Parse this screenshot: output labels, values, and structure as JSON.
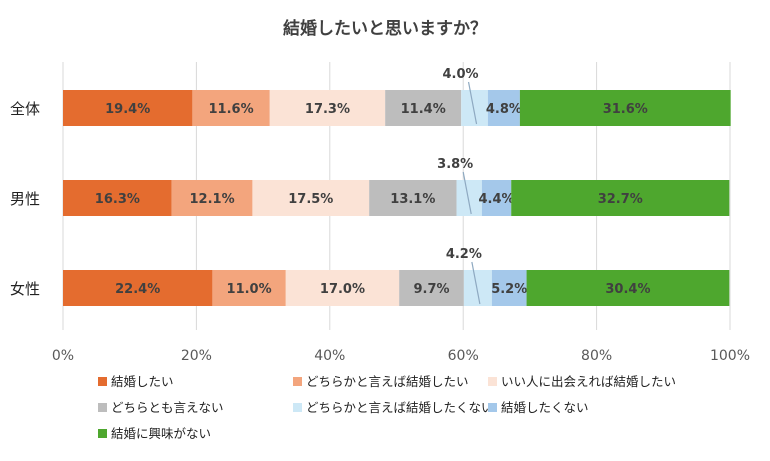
{
  "chart_data": {
    "type": "bar",
    "orientation": "horizontal",
    "stacked": true,
    "percent": true,
    "title": "結婚したいと思いますか？",
    "categories": [
      "全体",
      "男性",
      "女性"
    ],
    "series": [
      {
        "name": "結婚したい",
        "color": "#E46C2F",
        "values": [
          19.4,
          16.3,
          22.4
        ],
        "labels": [
          "19.4%",
          "16.3%",
          "22.4%"
        ]
      },
      {
        "name": "どちらかと言えば結婚したい",
        "color": "#F3A57D",
        "values": [
          11.6,
          12.1,
          11.0
        ],
        "labels": [
          "11.6%",
          "12.1%",
          "11.0%"
        ]
      },
      {
        "name": "いい人に出会えれば結婚したい",
        "color": "#FBE3D6",
        "values": [
          17.3,
          17.5,
          17.0
        ],
        "labels": [
          "17.3%",
          "17.5%",
          "17.0%"
        ]
      },
      {
        "name": "どちらとも言えない",
        "color": "#BDBDBD",
        "values": [
          11.4,
          13.1,
          9.7
        ],
        "labels": [
          "11.4%",
          "13.1%",
          "9.7%"
        ]
      },
      {
        "name": "どちらかと言えば結婚したくない",
        "color": "#CDE8F6",
        "values": [
          4.0,
          3.8,
          4.2
        ],
        "labels": [
          "4.0%",
          "3.8%",
          "4.2%"
        ]
      },
      {
        "name": "結婚したくない",
        "color": "#A4C8EA",
        "values": [
          4.8,
          4.4,
          5.2
        ],
        "labels": [
          "4.8%",
          "4.4%",
          "5.2%"
        ]
      },
      {
        "name": "結婚に興味がない",
        "color": "#4EA72E",
        "values": [
          31.6,
          32.7,
          30.4
        ],
        "labels": [
          "31.6%",
          "32.7%",
          "30.4%"
        ]
      }
    ],
    "xlim": [
      0,
      100
    ],
    "x_ticks": [
      "0%",
      "20%",
      "40%",
      "60%",
      "80%",
      "100%"
    ],
    "grid": true,
    "legend_position": "bottom"
  }
}
